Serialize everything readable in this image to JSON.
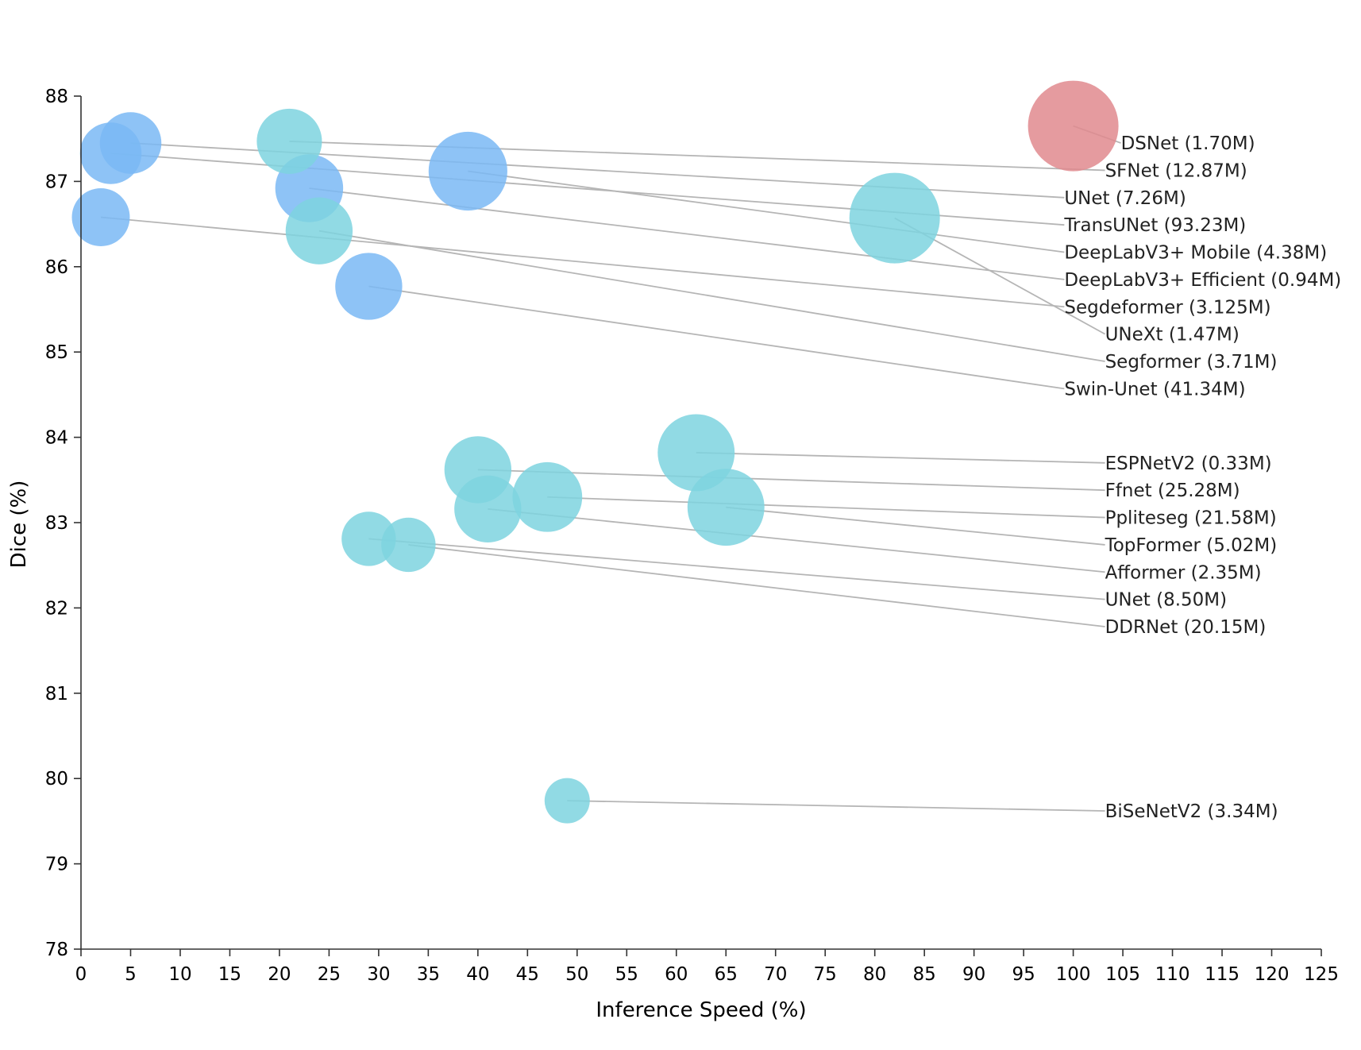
{
  "chart_data": {
    "type": "scatter",
    "xlabel": "Inference Speed (%)",
    "ylabel": "Dice (%)",
    "xlim": [
      0,
      125
    ],
    "ylim": [
      78,
      88
    ],
    "xticks": [
      0,
      5,
      10,
      15,
      20,
      25,
      30,
      35,
      40,
      45,
      50,
      55,
      60,
      65,
      70,
      75,
      80,
      85,
      90,
      95,
      100,
      105,
      110,
      115,
      120,
      125
    ],
    "yticks": [
      78,
      79,
      80,
      81,
      82,
      83,
      84,
      85,
      86,
      87,
      88
    ],
    "grid": false,
    "colors": {
      "blue": "#7ab8f5",
      "cyan": "#7ed3df",
      "red": "#e08a8e"
    },
    "points": [
      {
        "label": "DSNet (1.70M)",
        "x": 100,
        "y": 87.65,
        "size": 1.0,
        "color": "red",
        "label_x": 104.8,
        "label_y": 87.45
      },
      {
        "label": "SFNet (12.87M)",
        "x": 21,
        "y": 87.47,
        "size": 0.72,
        "color": "cyan",
        "label_x": 103.2,
        "label_y": 87.13
      },
      {
        "label": "UNet (7.26M)",
        "x": 5,
        "y": 87.45,
        "size": 0.68,
        "color": "blue",
        "label_x": 99.1,
        "label_y": 86.81
      },
      {
        "label": "TransUNet (93.23M)",
        "x": 3,
        "y": 87.33,
        "size": 0.68,
        "color": "blue",
        "label_x": 99.1,
        "label_y": 86.49
      },
      {
        "label": "DeepLabV3+ Mobile (4.38M)",
        "x": 39,
        "y": 87.12,
        "size": 0.87,
        "color": "blue",
        "label_x": 99.1,
        "label_y": 86.17
      },
      {
        "label": "DeepLabV3+ Efficient (0.94M)",
        "x": 23,
        "y": 86.92,
        "size": 0.75,
        "color": "blue",
        "label_x": 99.1,
        "label_y": 85.85
      },
      {
        "label": "Segdeformer (3.125M)",
        "x": 2,
        "y": 86.58,
        "size": 0.64,
        "color": "blue",
        "label_x": 99.1,
        "label_y": 85.53
      },
      {
        "label": "UNeXt (1.47M)",
        "x": 82,
        "y": 86.57,
        "size": 1.0,
        "color": "cyan",
        "label_x": 103.2,
        "label_y": 85.21
      },
      {
        "label": "Segformer (3.71M)",
        "x": 24,
        "y": 86.42,
        "size": 0.74,
        "color": "cyan",
        "label_x": 103.2,
        "label_y": 84.89
      },
      {
        "label": "Swin-Unet (41.34M)",
        "x": 29,
        "y": 85.77,
        "size": 0.74,
        "color": "blue",
        "label_x": 99.1,
        "label_y": 84.57
      },
      {
        "label": "ESPNetV2 (0.33M)",
        "x": 62,
        "y": 83.82,
        "size": 0.85,
        "color": "cyan",
        "label_x": 103.2,
        "label_y": 83.7
      },
      {
        "label": "Ffnet (25.28M)",
        "x": 40,
        "y": 83.62,
        "size": 0.74,
        "color": "cyan",
        "label_x": 103.2,
        "label_y": 83.38
      },
      {
        "label": "Ppliteseg (21.58M)",
        "x": 47,
        "y": 83.3,
        "size": 0.77,
        "color": "cyan",
        "label_x": 103.2,
        "label_y": 83.06
      },
      {
        "label": "TopFormer (5.02M)",
        "x": 65,
        "y": 83.18,
        "size": 0.85,
        "color": "cyan",
        "label_x": 103.2,
        "label_y": 82.74
      },
      {
        "label": "Afformer (2.35M)",
        "x": 41,
        "y": 83.16,
        "size": 0.74,
        "color": "cyan",
        "label_x": 103.2,
        "label_y": 82.42
      },
      {
        "label": "UNet (8.50M)",
        "x": 29,
        "y": 82.81,
        "size": 0.6,
        "color": "cyan",
        "label_x": 103.2,
        "label_y": 82.1
      },
      {
        "label": "DDRNet (20.15M)",
        "x": 33,
        "y": 82.74,
        "size": 0.6,
        "color": "cyan",
        "label_x": 103.2,
        "label_y": 81.78
      },
      {
        "label": "BiSeNetV2 (3.34M)",
        "x": 49,
        "y": 79.74,
        "size": 0.5,
        "color": "cyan",
        "label_x": 103.2,
        "label_y": 79.62
      }
    ]
  }
}
